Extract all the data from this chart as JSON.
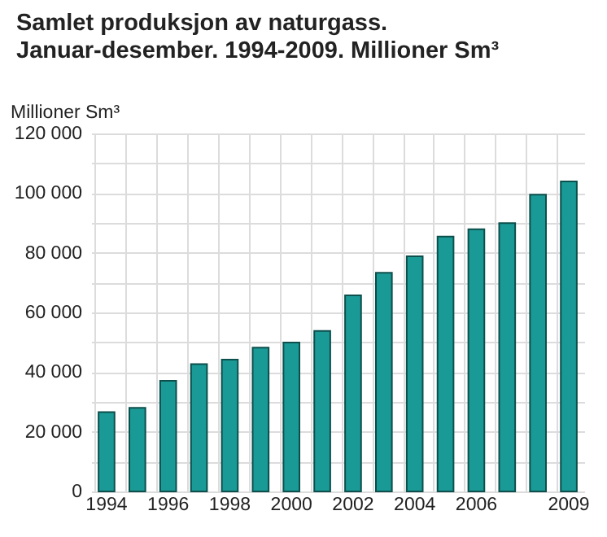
{
  "chart_data": {
    "type": "bar",
    "title": "Samlet produksjon av naturgass. Januar-desember. 1994-2009. Millioner Sm³",
    "ylabel": "Millioner Sm³",
    "categories": [
      "1994",
      null,
      "1996",
      null,
      "1998",
      null,
      "2000",
      null,
      "2002",
      null,
      "2004",
      null,
      "2006",
      null,
      null,
      "2009"
    ],
    "values": [
      26600,
      28000,
      37100,
      42700,
      44200,
      48200,
      49900,
      53800,
      65700,
      73300,
      78800,
      85400,
      87900,
      89900,
      99500,
      103900
    ],
    "color": "#1a9a96",
    "ylim": [
      0,
      120000
    ],
    "yticks": [
      0,
      {
        "value": 10000,
        "label": null
      },
      {
        "value": 20000,
        "label": "20 000"
      },
      {
        "value": 30000,
        "label": null
      },
      {
        "value": 40000,
        "label": "40 000"
      },
      {
        "value": 50000,
        "label": null
      },
      {
        "value": 60000,
        "label": "60 000"
      },
      {
        "value": 70000,
        "label": null
      },
      {
        "value": 80000,
        "label": "80 000"
      },
      {
        "value": 90000,
        "label": null
      },
      {
        "value": 100000,
        "label": "100 000"
      },
      {
        "value": 110000,
        "label": null
      },
      {
        "value": 120000,
        "label": "120 000"
      }
    ],
    "grid": true
  }
}
